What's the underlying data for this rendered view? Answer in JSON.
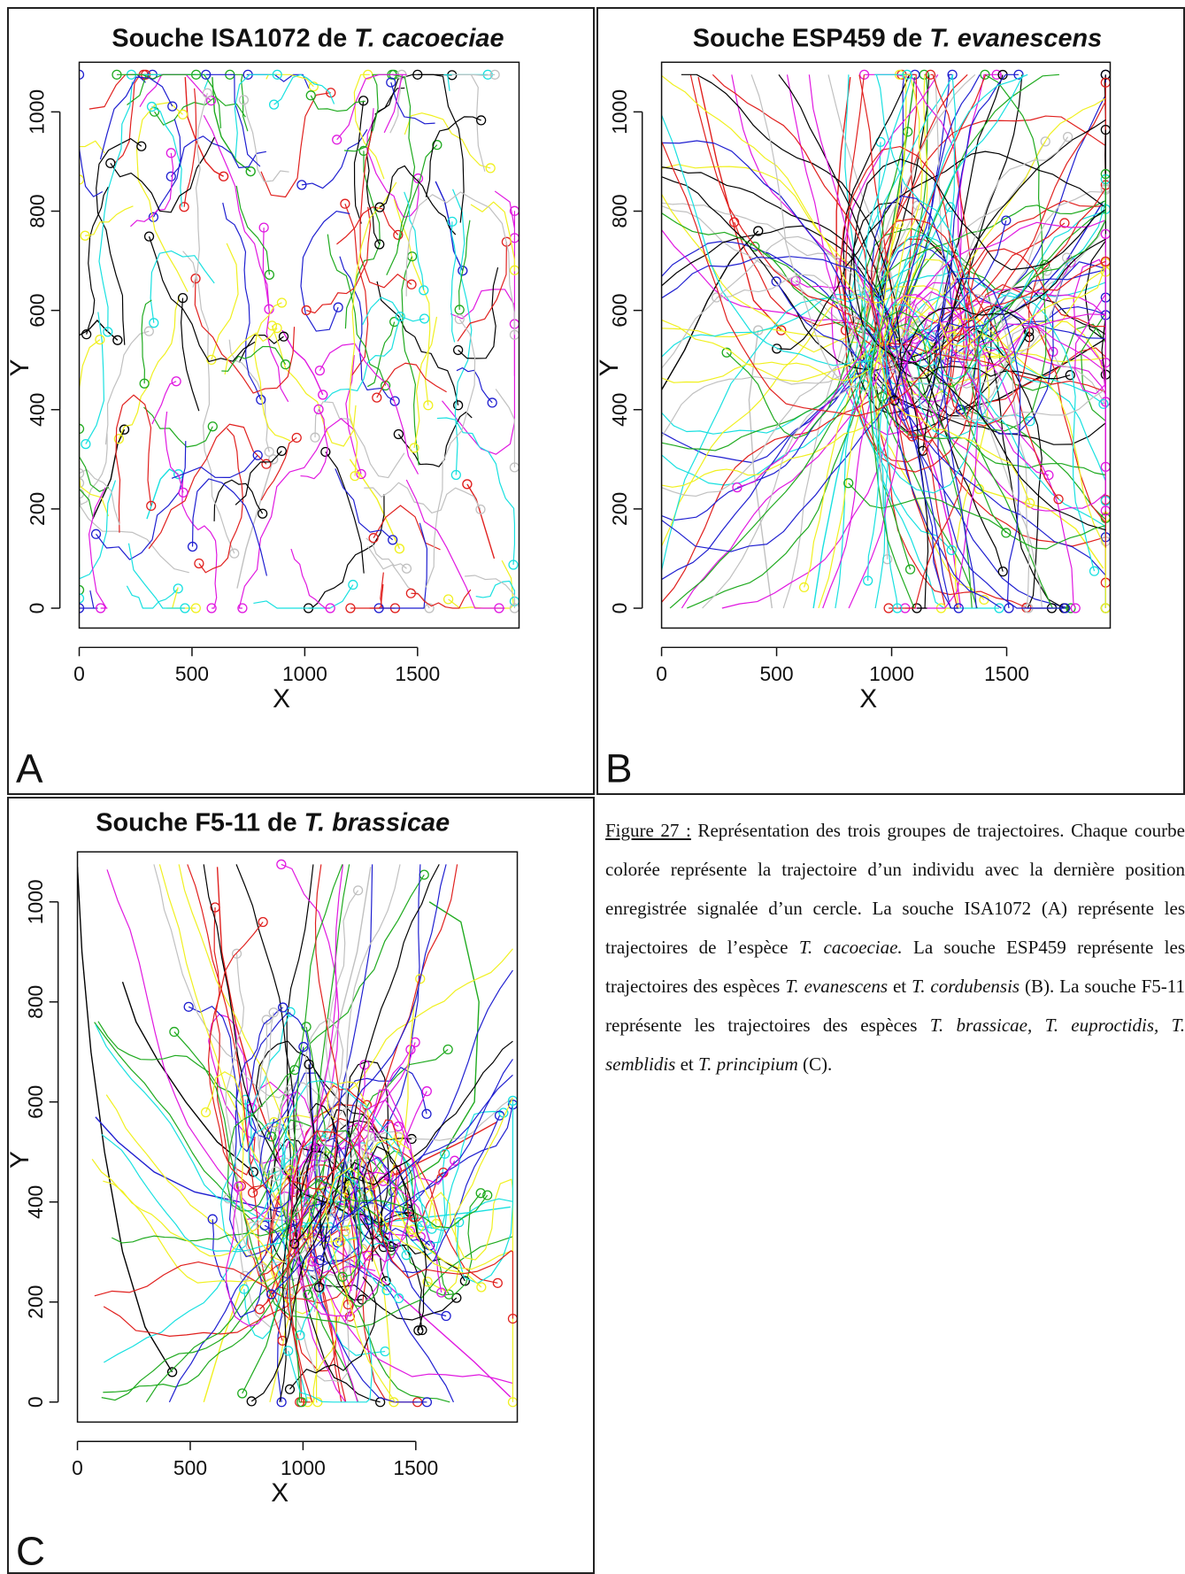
{
  "panels": [
    {
      "letter": "A",
      "title_prefix": "Souche ISA1072 de ",
      "title_species": "T. cacoeciae",
      "xlabel": "X",
      "ylabel": "Y",
      "xticks": [
        "0",
        "500",
        "1000",
        "1500"
      ],
      "yticks": [
        "0",
        "200",
        "400",
        "600",
        "800",
        "1000"
      ]
    },
    {
      "letter": "B",
      "title_prefix": "Souche ESP459 de ",
      "title_species": "T. evanescens",
      "xlabel": "X",
      "ylabel": "Y",
      "xticks": [
        "0",
        "500",
        "1000",
        "1500"
      ],
      "yticks": [
        "0",
        "200",
        "400",
        "600",
        "800",
        "1000"
      ]
    },
    {
      "letter": "C",
      "title_prefix": "Souche F5-11 de ",
      "title_species": "T. brassicae",
      "xlabel": "X",
      "ylabel": "Y",
      "xticks": [
        "0",
        "500",
        "1000",
        "1500"
      ],
      "yticks": [
        "0",
        "200",
        "400",
        "600",
        "800",
        "1000"
      ]
    }
  ],
  "caption": {
    "fig_label": "Figure 27 :",
    "t1": " Représentation des trois groupes de trajectoires. Chaque courbe colorée représente la trajectoire d’un individu avec la dernière position enregistrée signalée d’un cercle. La souche ISA1072 (A) représente les trajectoires de l’espèce ",
    "i1": "T. cacoeciae.",
    "t2": " La souche ESP459 représente les trajectoires des espèces ",
    "i2": "T. evanescens",
    "t3": " et ",
    "i3": "T. cordubensis",
    "t4": " (B). La souche F5-11 représente les trajectoires des espèces ",
    "i4": "T. brassicae, T. euproctidis, T. semblidis",
    "t5": " et ",
    "i5": "T. principium",
    "t6": " (C)."
  },
  "colors": [
    "#000000",
    "#e0201e",
    "#1faa1f",
    "#1f1fd0",
    "#18e0e0",
    "#e018e0",
    "#f0f020",
    "#c0c0c0"
  ],
  "chart_data": [
    {
      "type": "line",
      "panel": "A",
      "title": "Souche ISA1072 de T. cacoeciae",
      "xlabel": "X",
      "ylabel": "Y",
      "xlim": [
        0,
        1900
      ],
      "ylim": [
        0,
        1080
      ],
      "grid": false,
      "note_style": "many short jittery trajectories spread over whole arena; end points marked with circle",
      "series": [
        {
          "values": [
            [
              0,
              550
            ],
            [
              40,
              560
            ],
            [
              80,
              580
            ],
            [
              120,
              560
            ],
            [
              170,
              540
            ]
          ]
        },
        {
          "values": [
            [
              470,
              1070
            ],
            [
              480,
              990
            ],
            [
              520,
              940
            ],
            [
              560,
              900
            ],
            [
              600,
              880
            ],
            [
              640,
              870
            ]
          ]
        },
        {
          "values": [
            [
              590,
              1070
            ],
            [
              600,
              1000
            ],
            [
              630,
              950
            ],
            [
              700,
              900
            ],
            [
              760,
              880
            ]
          ]
        },
        {
          "values": [
            [
              1580,
              860
            ],
            [
              1620,
              820
            ],
            [
              1640,
              780
            ],
            [
              1660,
              720
            ],
            [
              1700,
              680
            ]
          ]
        },
        {
          "values": [
            [
              300,
              180
            ],
            [
              330,
              220
            ],
            [
              360,
              260
            ],
            [
              400,
              280
            ],
            [
              440,
              270
            ]
          ]
        },
        {
          "values": [
            [
              900,
              560
            ],
            [
              950,
              520
            ],
            [
              1000,
              500
            ],
            [
              1040,
              470
            ],
            [
              1080,
              430
            ]
          ]
        },
        {
          "values": [
            [
              1200,
              300
            ],
            [
              1260,
              260
            ],
            [
              1320,
              220
            ],
            [
              1380,
              160
            ],
            [
              1420,
              120
            ]
          ]
        },
        {
          "values": [
            [
              700,
              40
            ],
            [
              740,
              120
            ],
            [
              780,
              180
            ],
            [
              820,
              240
            ],
            [
              860,
              300
            ]
          ]
        },
        {
          "values": [
            [
              60,
              180
            ],
            [
              100,
              220
            ],
            [
              140,
              260
            ],
            [
              170,
              330
            ],
            [
              200,
              360
            ]
          ]
        },
        {
          "values": [
            [
              1840,
              100
            ],
            [
              1800,
              160
            ],
            [
              1760,
              220
            ],
            [
              1720,
              250
            ]
          ]
        }
      ]
    },
    {
      "type": "line",
      "panel": "B",
      "title": "Souche ESP459 de T. evanescens",
      "xlabel": "X",
      "ylabel": "Y",
      "xlim": [
        0,
        1900
      ],
      "ylim": [
        0,
        1080
      ],
      "grid": false,
      "note_style": "long smooth trajectories crossing whole arena; end points on borders marked with circle",
      "series": [
        {
          "values": [
            [
              0,
              440
            ],
            [
              100,
              520
            ],
            [
              200,
              620
            ],
            [
              300,
              700
            ],
            [
              420,
              760
            ]
          ]
        },
        {
          "values": [
            [
              160,
              1070
            ],
            [
              240,
              900
            ],
            [
              320,
              760
            ],
            [
              400,
              620
            ],
            [
              520,
              560
            ]
          ]
        },
        {
          "values": [
            [
              1100,
              1070
            ],
            [
              1050,
              900
            ],
            [
              1000,
              760
            ],
            [
              950,
              620
            ],
            [
              900,
              480
            ]
          ]
        },
        {
          "values": [
            [
              1920,
              820
            ],
            [
              1760,
              700
            ],
            [
              1600,
              620
            ],
            [
              1420,
              560
            ],
            [
              1240,
              500
            ]
          ]
        },
        {
          "values": [
            [
              660,
              0
            ],
            [
              700,
              120
            ],
            [
              760,
              260
            ],
            [
              820,
              380
            ],
            [
              880,
              450
            ]
          ]
        },
        {
          "values": [
            [
              1300,
              0
            ],
            [
              1260,
              140
            ],
            [
              1200,
              260
            ],
            [
              1120,
              380
            ],
            [
              1040,
              460
            ]
          ]
        },
        {
          "values": [
            [
              1920,
              80
            ],
            [
              1800,
              160
            ],
            [
              1680,
              200
            ],
            [
              1520,
              220
            ],
            [
              1380,
              240
            ]
          ]
        },
        {
          "values": [
            [
              480,
              0
            ],
            [
              440,
              140
            ],
            [
              400,
              280
            ],
            [
              380,
              420
            ],
            [
              420,
              560
            ]
          ]
        },
        {
          "values": [
            [
              1920,
              540
            ],
            [
              1780,
              500
            ],
            [
              1620,
              460
            ],
            [
              1460,
              420
            ],
            [
              1300,
              400
            ]
          ]
        },
        {
          "values": [
            [
              820,
              1070
            ],
            [
              780,
              920
            ],
            [
              760,
              800
            ],
            [
              760,
              680
            ],
            [
              800,
              560
            ]
          ]
        }
      ]
    },
    {
      "type": "line",
      "panel": "C",
      "title": "Souche F5-11 de T. brassicae",
      "xlabel": "X",
      "ylabel": "Y",
      "xlim": [
        0,
        1900
      ],
      "ylim": [
        0,
        1080
      ],
      "grid": false,
      "note_style": "trajectories converging to dense cluster near centre (x~900-1100, y~300-500)",
      "series": [
        {
          "values": [
            [
              0,
              1070
            ],
            [
              20,
              900
            ],
            [
              60,
              700
            ],
            [
              120,
              500
            ],
            [
              200,
              300
            ],
            [
              300,
              150
            ],
            [
              420,
              60
            ]
          ]
        },
        {
          "values": [
            [
              620,
              1070
            ],
            [
              640,
              900
            ],
            [
              700,
              760
            ],
            [
              800,
              600
            ],
            [
              900,
              480
            ],
            [
              960,
              420
            ]
          ]
        },
        {
          "values": [
            [
              1560,
              1000
            ],
            [
              1700,
              960
            ],
            [
              1780,
              800
            ],
            [
              1760,
              600
            ],
            [
              1600,
              480
            ],
            [
              1400,
              420
            ]
          ]
        },
        {
          "values": [
            [
              80,
              570
            ],
            [
              180,
              520
            ],
            [
              340,
              460
            ],
            [
              520,
              420
            ],
            [
              720,
              400
            ],
            [
              900,
              380
            ]
          ]
        },
        {
          "values": [
            [
              1920,
              390
            ],
            [
              1760,
              380
            ],
            [
              1560,
              370
            ],
            [
              1360,
              360
            ],
            [
              1160,
              350
            ],
            [
              1000,
              350
            ]
          ]
        },
        {
          "values": [
            [
              1920,
              10
            ],
            [
              1760,
              80
            ],
            [
              1560,
              160
            ],
            [
              1360,
              240
            ],
            [
              1160,
              300
            ],
            [
              1040,
              340
            ]
          ]
        },
        {
          "values": [
            [
              560,
              0
            ],
            [
              640,
              120
            ],
            [
              720,
              220
            ],
            [
              820,
              300
            ],
            [
              920,
              340
            ]
          ]
        },
        {
          "values": [
            [
              1300,
              1070
            ],
            [
              1240,
              900
            ],
            [
              1160,
              760
            ],
            [
              1080,
              620
            ],
            [
              1020,
              500
            ]
          ]
        },
        {
          "values": [
            [
              200,
              840
            ],
            [
              260,
              760
            ],
            [
              360,
              680
            ],
            [
              480,
              600
            ],
            [
              620,
              520
            ],
            [
              780,
              460
            ]
          ]
        },
        {
          "values": [
            [
              1860,
              560
            ],
            [
              1700,
              520
            ],
            [
              1520,
              480
            ],
            [
              1340,
              440
            ],
            [
              1180,
              410
            ]
          ]
        }
      ]
    }
  ]
}
